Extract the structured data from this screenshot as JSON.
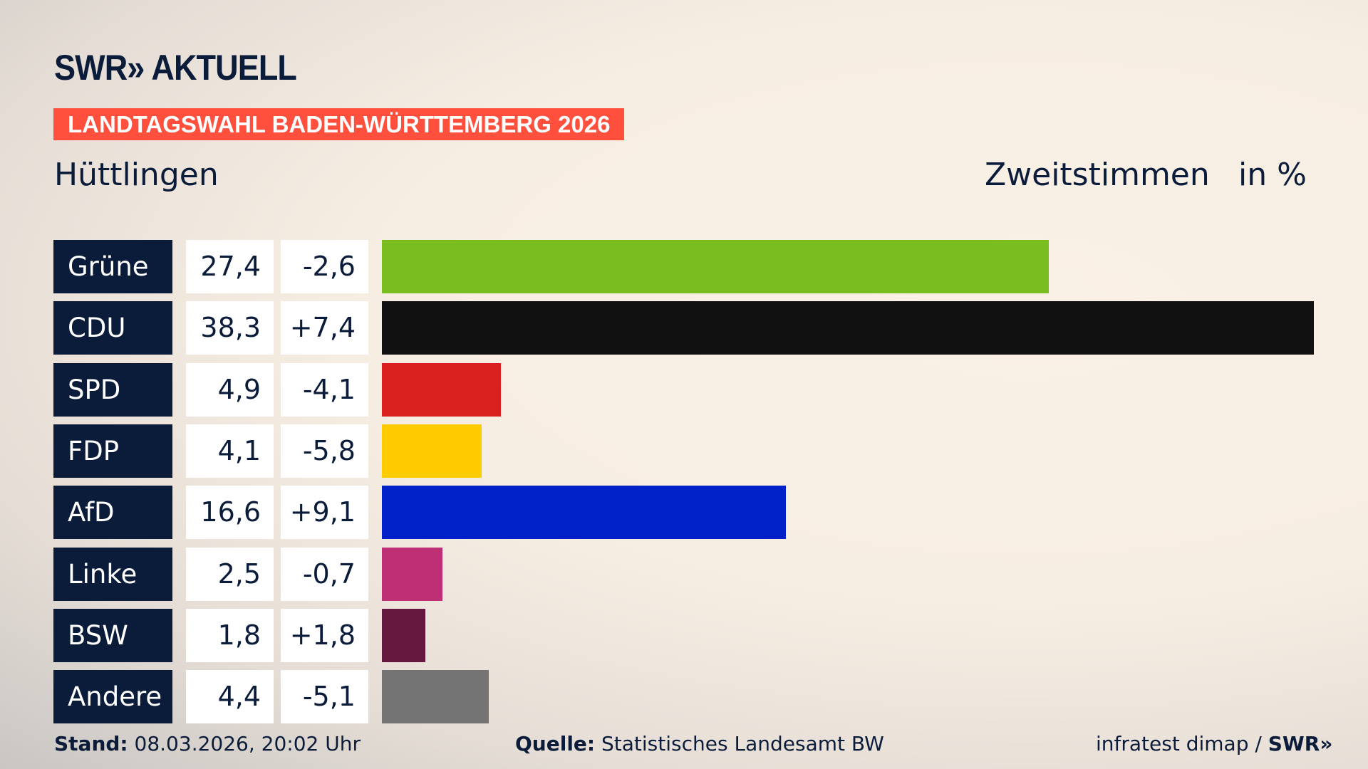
{
  "header": {
    "logo": "SWR» AKTUELL",
    "banner": "LANDTAGSWAHL BADEN-WÜRTTEMBERG 2026",
    "region": "Hüttlingen",
    "measure": "Zweitstimmen",
    "unit": "in %"
  },
  "chart_data": {
    "type": "bar",
    "orientation": "horizontal",
    "categories": [
      "Grüne",
      "CDU",
      "SPD",
      "FDP",
      "AfD",
      "Linke",
      "BSW",
      "Andere"
    ],
    "values": [
      27.4,
      38.3,
      4.9,
      4.1,
      16.6,
      2.5,
      1.8,
      4.4
    ],
    "labels": [
      "27,4",
      "38,3",
      "4,9",
      "4,1",
      "16,6",
      "2,5",
      "1,8",
      "4,4"
    ],
    "changes": [
      "-2,6",
      "+7,4",
      "-4,1",
      "-5,8",
      "+9,1",
      "-0,7",
      "+1,8",
      "-5,1"
    ],
    "colors": [
      "#79bd1e",
      "#111111",
      "#d9201e",
      "#ffcc00",
      "#0021c8",
      "#bf2f76",
      "#66173d",
      "#747474"
    ],
    "xlim": [
      0,
      38.3
    ]
  },
  "footer": {
    "stand_label": "Stand:",
    "stand_value": "08.03.2026, 20:02 Uhr",
    "source_label": "Quelle:",
    "source_value": "Statistisches Landesamt BW",
    "credit": "infratest dimap / ",
    "credit_logo": "SWR»"
  }
}
